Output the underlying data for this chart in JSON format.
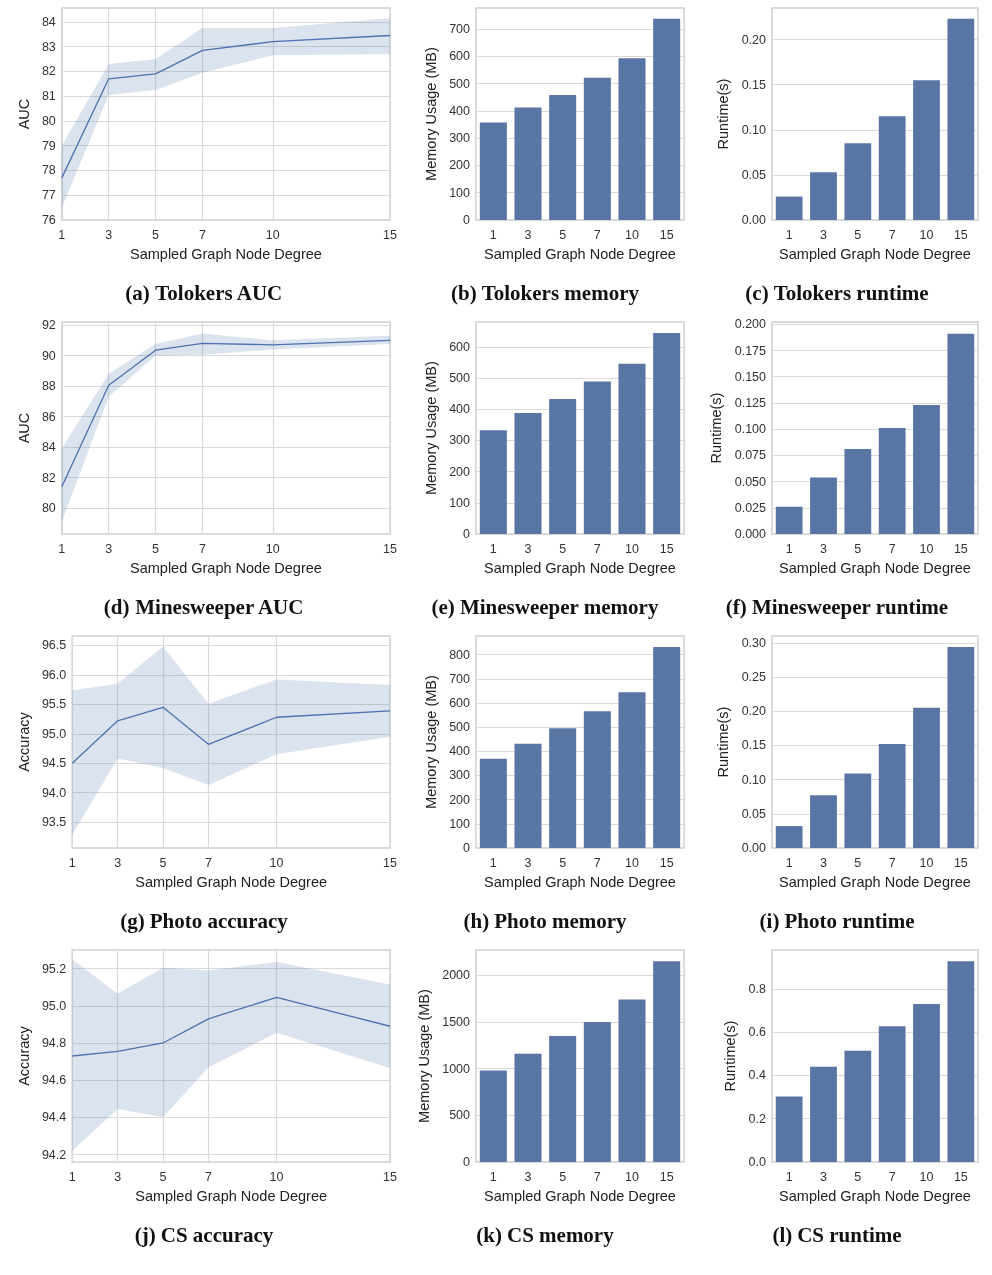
{
  "chart_data": [
    {
      "type": "line",
      "title": "(a) Tolokers AUC",
      "xlabel": "Sampled Graph Node Degree",
      "ylabel": "AUC",
      "x": [
        1,
        3,
        5,
        7,
        10,
        15
      ],
      "xlim": [
        1,
        15
      ],
      "xticks": [
        1,
        3,
        5,
        7,
        10,
        15
      ],
      "ylim": [
        76,
        84.56
      ],
      "yticks": [
        76,
        77,
        78,
        79,
        80,
        81,
        82,
        83,
        84
      ],
      "grid": true,
      "series": [
        {
          "color": "#4c72b0",
          "values": [
            77.7,
            81.7,
            81.9,
            82.85,
            83.2,
            83.45
          ],
          "lower": [
            76.5,
            81.05,
            81.25,
            81.95,
            82.65,
            82.7
          ],
          "upper": [
            79.0,
            82.3,
            82.5,
            83.75,
            83.75,
            84.15
          ]
        }
      ]
    },
    {
      "type": "bar",
      "title": "(b) Tolokers memory",
      "xlabel": "Sampled Graph Node Degree",
      "ylabel": "Memory Usage (MB)",
      "categories": [
        "1",
        "3",
        "5",
        "7",
        "10",
        "15"
      ],
      "ylim": [
        0,
        777
      ],
      "yticks": [
        0,
        100,
        200,
        300,
        400,
        500,
        600,
        700
      ],
      "grid": "y",
      "series": [
        {
          "color": "#5975a4",
          "values": [
            357,
            412,
            458,
            521,
            593,
            738
          ]
        }
      ]
    },
    {
      "type": "bar",
      "title": "(c) Tolokers runtime",
      "xlabel": "Sampled Graph Node Degree",
      "ylabel": "Runtime(s)",
      "categories": [
        "1",
        "3",
        "5",
        "7",
        "10",
        "15"
      ],
      "ylim": [
        0,
        0.235
      ],
      "yticks": [
        {
          "value": 0,
          "label": "0.00"
        },
        0.05,
        {
          "value": 0.1,
          "label": "0.10"
        },
        0.15,
        {
          "value": 0.2,
          "label": "0.20"
        }
      ],
      "grid": "y",
      "series": [
        {
          "color": "#5975a4",
          "values": [
            0.026,
            0.053,
            0.085,
            0.115,
            0.155,
            0.223
          ]
        }
      ]
    },
    {
      "type": "line",
      "title": "(d) Minesweeper AUC",
      "xlabel": "Sampled Graph Node Degree",
      "ylabel": "AUC",
      "x": [
        1,
        3,
        5,
        7,
        10,
        15
      ],
      "xlim": [
        1,
        15
      ],
      "xticks": [
        1,
        3,
        5,
        7,
        10,
        15
      ],
      "ylim": [
        78.3,
        92.2
      ],
      "yticks": [
        80,
        82,
        84,
        86,
        88,
        90,
        92
      ],
      "grid": true,
      "series": [
        {
          "color": "#4c72b0",
          "values": [
            81.4,
            88.05,
            90.35,
            90.8,
            90.7,
            91.0
          ],
          "lower": [
            79.1,
            87.3,
            90.0,
            90.05,
            90.4,
            90.75
          ],
          "upper": [
            83.9,
            88.8,
            90.75,
            91.45,
            91.0,
            91.3
          ]
        }
      ]
    },
    {
      "type": "bar",
      "title": "(e) Minesweeper memory",
      "xlabel": "Sampled Graph Node Degree",
      "ylabel": "Memory Usage (MB)",
      "categories": [
        "1",
        "3",
        "5",
        "7",
        "10",
        "15"
      ],
      "ylim": [
        0,
        680
      ],
      "yticks": [
        0,
        100,
        200,
        300,
        400,
        500,
        600
      ],
      "grid": "y",
      "series": [
        {
          "color": "#5975a4",
          "values": [
            333,
            388,
            433,
            489,
            546,
            645
          ]
        }
      ]
    },
    {
      "type": "bar",
      "title": "(f) Minesweeper runtime",
      "xlabel": "Sampled Graph Node Degree",
      "ylabel": "Runtime(s)",
      "categories": [
        "1",
        "3",
        "5",
        "7",
        "10",
        "15"
      ],
      "ylim": [
        0,
        0.2022
      ],
      "yticks": [
        {
          "value": 0,
          "label": "0.000"
        },
        0.025,
        {
          "value": 0.05,
          "label": "0.050"
        },
        0.075,
        {
          "value": 0.1,
          "label": "0.100"
        },
        0.125,
        {
          "value": 0.15,
          "label": "0.150"
        },
        0.175,
        {
          "value": 0.2,
          "label": "0.200"
        }
      ],
      "grid": "y",
      "series": [
        {
          "color": "#5975a4",
          "values": [
            0.026,
            0.054,
            0.081,
            0.101,
            0.123,
            0.191
          ]
        }
      ]
    },
    {
      "type": "line",
      "title": "(g) Photo accuracy",
      "xlabel": "Sampled Graph Node Degree",
      "ylabel": "Accuracy",
      "x": [
        1,
        3,
        5,
        7,
        10,
        15
      ],
      "xlim": [
        1,
        15
      ],
      "xticks": [
        1,
        3,
        5,
        7,
        10,
        15
      ],
      "ylim": [
        93.06,
        96.66
      ],
      "yticks": [
        93.5,
        {
          "value": 94,
          "label": "94.0"
        },
        94.5,
        {
          "value": 95,
          "label": "95.0"
        },
        95.5,
        {
          "value": 96,
          "label": "96.0"
        },
        96.5
      ],
      "grid": true,
      "series": [
        {
          "color": "#4c72b0",
          "values": [
            94.5,
            95.22,
            95.45,
            94.82,
            95.28,
            95.39
          ],
          "lower": [
            93.28,
            94.58,
            94.42,
            94.13,
            94.65,
            94.95
          ],
          "upper": [
            95.74,
            95.85,
            96.48,
            95.51,
            95.92,
            95.83
          ]
        }
      ]
    },
    {
      "type": "bar",
      "title": "(h) Photo memory",
      "xlabel": "Sampled Graph Node Degree",
      "ylabel": "Memory Usage (MB)",
      "categories": [
        "1",
        "3",
        "5",
        "7",
        "10",
        "15"
      ],
      "ylim": [
        0,
        877
      ],
      "yticks": [
        0,
        100,
        200,
        300,
        400,
        500,
        600,
        700,
        800
      ],
      "grid": "y",
      "series": [
        {
          "color": "#5975a4",
          "values": [
            369,
            431,
            495,
            566,
            644,
            831
          ]
        }
      ]
    },
    {
      "type": "bar",
      "title": "(i) Photo runtime",
      "xlabel": "Sampled Graph Node Degree",
      "ylabel": "Runtime(s)",
      "categories": [
        "1",
        "3",
        "5",
        "7",
        "10",
        "15"
      ],
      "ylim": [
        0,
        0.31
      ],
      "yticks": [
        {
          "value": 0,
          "label": "0.00"
        },
        0.05,
        {
          "value": 0.1,
          "label": "0.10"
        },
        0.15,
        {
          "value": 0.2,
          "label": "0.20"
        },
        0.25,
        {
          "value": 0.3,
          "label": "0.30"
        }
      ],
      "grid": "y",
      "series": [
        {
          "color": "#5975a4",
          "values": [
            0.032,
            0.077,
            0.109,
            0.152,
            0.205,
            0.294
          ]
        }
      ]
    },
    {
      "type": "line",
      "title": "(j) CS accuracy",
      "xlabel": "Sampled Graph Node Degree",
      "ylabel": "Accuracy",
      "x": [
        1,
        3,
        5,
        7,
        10,
        15
      ],
      "xlim": [
        1,
        15
      ],
      "xticks": [
        1,
        3,
        5,
        7,
        10,
        15
      ],
      "ylim": [
        94.16,
        95.3
      ],
      "yticks": [
        94.2,
        94.4,
        94.6,
        94.8,
        {
          "value": 95,
          "label": "95.0"
        },
        95.2
      ],
      "grid": true,
      "series": [
        {
          "color": "#4c72b0",
          "values": [
            94.73,
            94.755,
            94.8,
            94.93,
            95.045,
            94.89
          ],
          "lower": [
            94.22,
            94.445,
            94.4,
            94.67,
            94.855,
            94.665
          ],
          "upper": [
            95.25,
            95.065,
            95.205,
            95.19,
            95.235,
            95.115
          ]
        }
      ]
    },
    {
      "type": "bar",
      "title": "(k) CS memory",
      "xlabel": "Sampled Graph Node Degree",
      "ylabel": "Memory Usage (MB)",
      "categories": [
        "1",
        "3",
        "5",
        "7",
        "10",
        "15"
      ],
      "ylim": [
        0,
        2270
      ],
      "yticks": [
        0,
        500,
        1000,
        1500,
        2000
      ],
      "grid": "y",
      "series": [
        {
          "color": "#5975a4",
          "values": [
            980,
            1160,
            1350,
            1500,
            1740,
            2150
          ]
        }
      ]
    },
    {
      "type": "bar",
      "title": "(l) CS runtime",
      "xlabel": "Sampled Graph Node Degree",
      "ylabel": "Runtime(s)",
      "categories": [
        "1",
        "3",
        "5",
        "7",
        "10",
        "15"
      ],
      "ylim": [
        0,
        0.98
      ],
      "yticks": [
        {
          "value": 0,
          "label": "0.0"
        },
        0.2,
        0.4,
        0.6,
        0.8
      ],
      "grid": "y",
      "series": [
        {
          "color": "#5975a4",
          "values": [
            0.303,
            0.44,
            0.514,
            0.627,
            0.73,
            0.928
          ]
        }
      ]
    }
  ]
}
